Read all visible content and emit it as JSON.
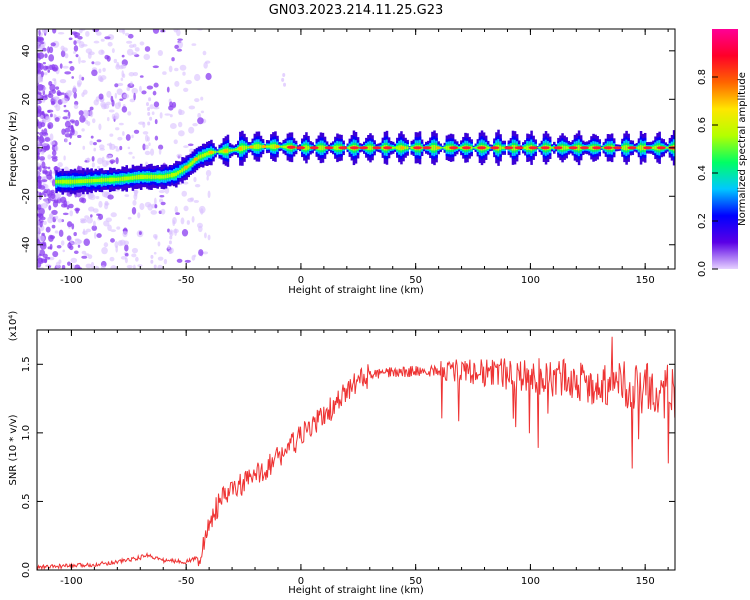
{
  "figure": {
    "title": "GN03.2023.214.11.25.G23"
  },
  "chart_data": [
    {
      "type": "heatmap",
      "xlabel": "Height of straight line (km)",
      "ylabel": "Frequency (Hz)",
      "xlim": [
        -115,
        163
      ],
      "ylim": [
        -50,
        49
      ],
      "xticks": [
        -100,
        -50,
        0,
        50,
        100,
        150
      ],
      "yticks": [
        -40,
        -20,
        0,
        20,
        40
      ],
      "grid": false,
      "colorbar": {
        "label": "Normalized spectral amplitude",
        "range": [
          0,
          1
        ],
        "ticks": [
          "0.0",
          "0.2",
          "0.4",
          "0.6",
          "0.8"
        ],
        "colormap": [
          "#e6d2ff",
          "#5a00e6",
          "#0000ff",
          "#00c8ff",
          "#00ff64",
          "#b4ff00",
          "#ffe600",
          "#ff6400",
          "#ff0028",
          "#ff0096"
        ]
      },
      "ridge": {
        "x": [
          -107,
          -100,
          -90,
          -80,
          -70,
          -60,
          -55,
          -50,
          -45,
          -40,
          -35,
          -30,
          -25,
          -20,
          -10,
          0,
          10,
          20,
          50,
          100,
          163
        ],
        "y": [
          -14,
          -14,
          -13.5,
          -13,
          -12,
          -12,
          -11,
          -8,
          -4,
          -2,
          -1.5,
          -1,
          0,
          0.5,
          0.5,
          0,
          0,
          0,
          0,
          0,
          0
        ]
      }
    },
    {
      "type": "line",
      "xlabel": "Height of straight line (km)",
      "ylabel": "SNR (10 * v/v)",
      "y_multiplier_label": "(x10⁴)",
      "xlim": [
        -115,
        163
      ],
      "ylim": [
        0,
        1.75
      ],
      "xticks": [
        -100,
        -50,
        0,
        50,
        100,
        150
      ],
      "yticks": [
        "0.0",
        "0.5",
        "1.0",
        "1.5"
      ],
      "color": "#ee3333",
      "series": [
        {
          "x": [
            -115,
            -100,
            -90,
            -80,
            -70,
            -67,
            -60,
            -50,
            -45,
            -42,
            -40,
            -35,
            -30,
            -25,
            -20,
            -15,
            -10,
            -5,
            0,
            5,
            10,
            15,
            20,
            25,
            30,
            40,
            50,
            60,
            70,
            80,
            90,
            100,
            110,
            120,
            130,
            140,
            150,
            155,
            160,
            163
          ],
          "values": [
            0.02,
            0.03,
            0.04,
            0.06,
            0.09,
            0.11,
            0.07,
            0.06,
            0.09,
            0.18,
            0.35,
            0.5,
            0.58,
            0.63,
            0.68,
            0.75,
            0.82,
            0.9,
            0.97,
            1.05,
            1.13,
            1.2,
            1.3,
            1.38,
            1.42,
            1.44,
            1.45,
            1.45,
            1.45,
            1.44,
            1.43,
            1.42,
            1.4,
            1.38,
            1.36,
            1.35,
            1.32,
            1.3,
            1.3,
            1.3
          ]
        }
      ]
    }
  ]
}
